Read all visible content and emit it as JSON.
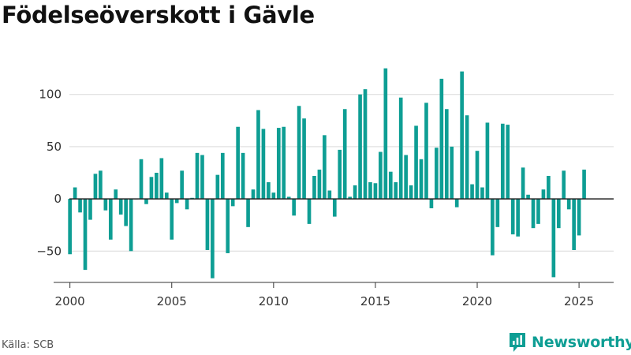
{
  "title": "Födelseöverskott i Gävle",
  "source": "Källa: SCB",
  "brand": {
    "name": "Newsworthy",
    "icon": "newsworthy-logo-icon",
    "color": "#0e9e94"
  },
  "chart_data": {
    "type": "bar",
    "title": "Födelseöverskott i Gävle",
    "xlabel": "",
    "ylabel": "",
    "bar_color": "#0e9e94",
    "grid": true,
    "ylim": [
      -80,
      130
    ],
    "xlim": [
      1999.2,
      2026.7
    ],
    "y_ticks": [
      -50,
      0,
      50,
      100
    ],
    "y_tick_labels": [
      "−50",
      "0",
      "50",
      "100"
    ],
    "x_ticks": [
      2000,
      2005,
      2010,
      2015,
      2020,
      2025
    ],
    "x_tick_labels": [
      "2000",
      "2005",
      "2010",
      "2015",
      "2020",
      "2025"
    ],
    "x": [
      2000.0,
      2000.25,
      2000.5,
      2000.75,
      2001.0,
      2001.25,
      2001.5,
      2001.75,
      2002.0,
      2002.25,
      2002.5,
      2002.75,
      2003.0,
      2003.25,
      2003.5,
      2003.75,
      2004.0,
      2004.25,
      2004.5,
      2004.75,
      2005.0,
      2005.25,
      2005.5,
      2005.75,
      2006.0,
      2006.25,
      2006.5,
      2006.75,
      2007.0,
      2007.25,
      2007.5,
      2007.75,
      2008.0,
      2008.25,
      2008.5,
      2008.75,
      2009.0,
      2009.25,
      2009.5,
      2009.75,
      2010.0,
      2010.25,
      2010.5,
      2010.75,
      2011.0,
      2011.25,
      2011.5,
      2011.75,
      2012.0,
      2012.25,
      2012.5,
      2012.75,
      2013.0,
      2013.25,
      2013.5,
      2013.75,
      2014.0,
      2014.25,
      2014.5,
      2014.75,
      2015.0,
      2015.25,
      2015.5,
      2015.75,
      2016.0,
      2016.25,
      2016.5,
      2016.75,
      2017.0,
      2017.25,
      2017.5,
      2017.75,
      2018.0,
      2018.25,
      2018.5,
      2018.75,
      2019.0,
      2019.25,
      2019.5,
      2019.75,
      2020.0,
      2020.25,
      2020.5,
      2020.75,
      2021.0,
      2021.25,
      2021.5,
      2021.75,
      2022.0,
      2022.25,
      2022.5,
      2022.75,
      2023.0,
      2023.25,
      2023.5,
      2023.75,
      2024.0,
      2024.25,
      2024.5,
      2024.75,
      2025.0,
      2025.25
    ],
    "values": [
      -53,
      11,
      -13,
      -68,
      -20,
      24,
      27,
      -11,
      -39,
      9,
      -15,
      -26,
      -50,
      0,
      38,
      -5,
      21,
      25,
      39,
      6,
      -39,
      -4,
      27,
      -10,
      1,
      44,
      42,
      -49,
      -76,
      23,
      44,
      -52,
      -7,
      69,
      44,
      -27,
      9,
      85,
      67,
      16,
      6,
      68,
      69,
      2,
      -16,
      89,
      77,
      -24,
      22,
      28,
      61,
      8,
      -17,
      47,
      86,
      2,
      13,
      100,
      105,
      16,
      15,
      45,
      125,
      26,
      16,
      97,
      42,
      13,
      70,
      38,
      92,
      -9,
      49,
      115,
      86,
      50,
      -8,
      122,
      80,
      14,
      46,
      11,
      73,
      -54,
      -27,
      72,
      71,
      -34,
      -36,
      30,
      4,
      -28,
      -24,
      9,
      22,
      -75,
      -28,
      27,
      -10,
      -49,
      -35,
      28
    ]
  }
}
